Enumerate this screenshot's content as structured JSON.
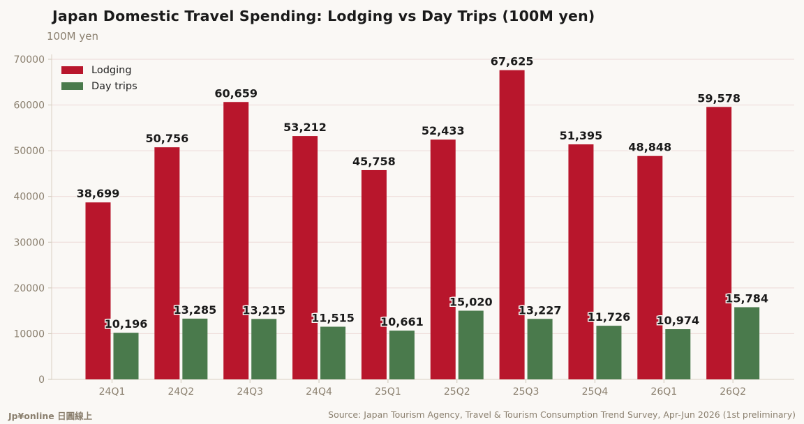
{
  "header": {
    "title": "Japan Domestic Travel Spending: Lodging vs Day Trips (100M yen)",
    "unit": "100M yen"
  },
  "footer": {
    "brand": "Jp¥online 日圓線上",
    "source": "Source: Japan Tourism Agency, Travel & Tourism Consumption Trend Survey, Apr-Jun 2026 (1st preliminary)"
  },
  "colors": {
    "lodging": "#b8162c",
    "day_trips": "#4a7a4c",
    "grid": "#ecd9d6",
    "axis_text": "#8a7f6e",
    "background": "#faf8f5"
  },
  "chart_data": {
    "type": "bar",
    "title": "Japan Domestic Travel Spending: Lodging vs Day Trips (100M yen)",
    "ylabel": "100M yen",
    "xlabel": "",
    "categories": [
      "24Q1",
      "24Q2",
      "24Q3",
      "24Q4",
      "25Q1",
      "25Q2",
      "25Q3",
      "25Q4",
      "26Q1",
      "26Q2"
    ],
    "series": [
      {
        "name": "Lodging",
        "values": [
          38699,
          50756,
          60659,
          53212,
          45758,
          52433,
          67625,
          51395,
          48848,
          59578
        ],
        "labels": [
          "38,699",
          "50,756",
          "60,659",
          "53,212",
          "45,758",
          "52,433",
          "67,625",
          "51,395",
          "48,848",
          "59,578"
        ]
      },
      {
        "name": "Day trips",
        "values": [
          10196,
          13285,
          13215,
          11515,
          10661,
          15020,
          13227,
          11726,
          10974,
          15784
        ],
        "labels": [
          "10,196",
          "13,285",
          "13,215",
          "11,515",
          "10,661",
          "15,020",
          "13,227",
          "11,726",
          "10,974",
          "15,784"
        ]
      }
    ],
    "ylim": [
      0,
      70000
    ],
    "yticks": [
      0,
      10000,
      20000,
      30000,
      40000,
      50000,
      60000,
      70000
    ],
    "ytick_labels": [
      "0",
      "10000",
      "20000",
      "30000",
      "40000",
      "50000",
      "60000",
      "70000"
    ],
    "grid": true,
    "legend": "top-left"
  }
}
